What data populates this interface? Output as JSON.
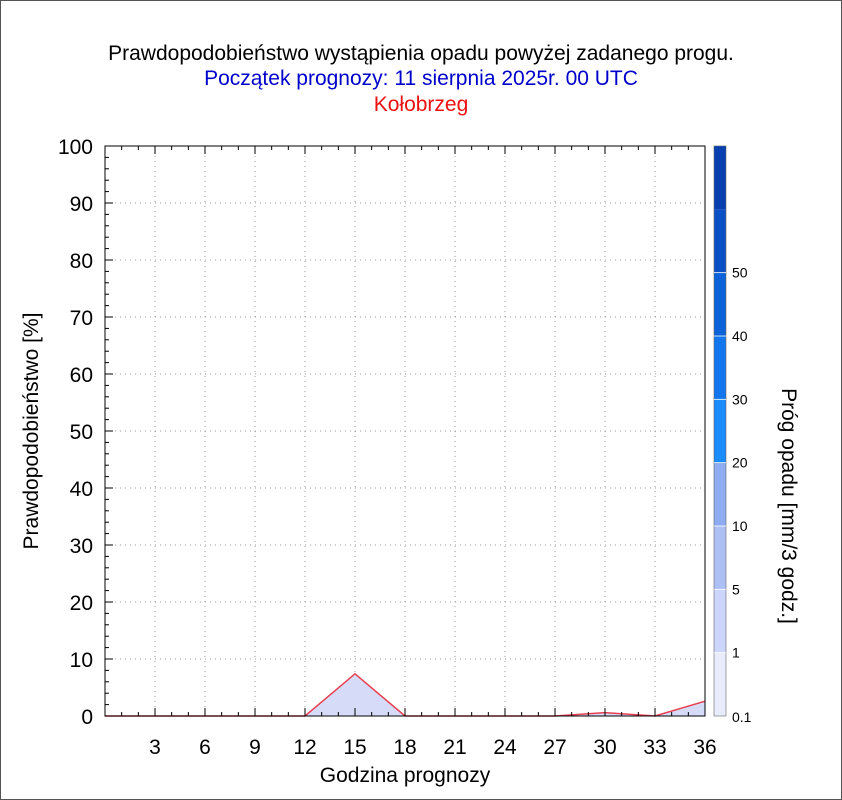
{
  "header": {
    "title": "Prawdopodobieństwo wystąpienia opadu powyżej zadanego progu.",
    "subtitle": "Początek prognozy: 11 sierpnia 2025r. 00 UTC",
    "location": "Kołobrzeg"
  },
  "colors": {
    "title": "#000000",
    "subtitle": "#0000cc",
    "location": "#ee1111",
    "series_line": "#e84050",
    "series_fill": "#d6dcf8"
  },
  "chart_data": {
    "type": "area",
    "xlabel": "Godzina prognozy",
    "ylabel": "Prawdopodobieństwo [%]",
    "xlim": [
      0,
      36
    ],
    "ylim": [
      0,
      100
    ],
    "x_ticks": [
      "3",
      "6",
      "9",
      "12",
      "15",
      "18",
      "21",
      "24",
      "27",
      "30",
      "33",
      "36"
    ],
    "y_ticks": [
      "0",
      "10",
      "20",
      "30",
      "40",
      "50",
      "60",
      "70",
      "80",
      "90",
      "100"
    ],
    "grid": true,
    "series": [
      {
        "threshold": "0.1",
        "x": [
          0,
          3,
          6,
          9,
          12,
          15,
          18,
          21,
          24,
          27,
          30,
          33,
          36
        ],
        "values": [
          0,
          0,
          0,
          0,
          0,
          7.4,
          0,
          0,
          0,
          0,
          0.6,
          0,
          2.6
        ]
      }
    ],
    "colorbar": {
      "label": "Próg opadu [mm/3 godz.]",
      "tick_labels": [
        "0.1",
        "1",
        "5",
        "10",
        "20",
        "30",
        "40",
        "50"
      ],
      "colors": [
        "#e8ecfc",
        "#ccd6fa",
        "#adc0f6",
        "#8eacf2",
        "#1a8cff",
        "#1277ee",
        "#0c62d8",
        "#0a50c4",
        "#0840b0"
      ]
    }
  }
}
